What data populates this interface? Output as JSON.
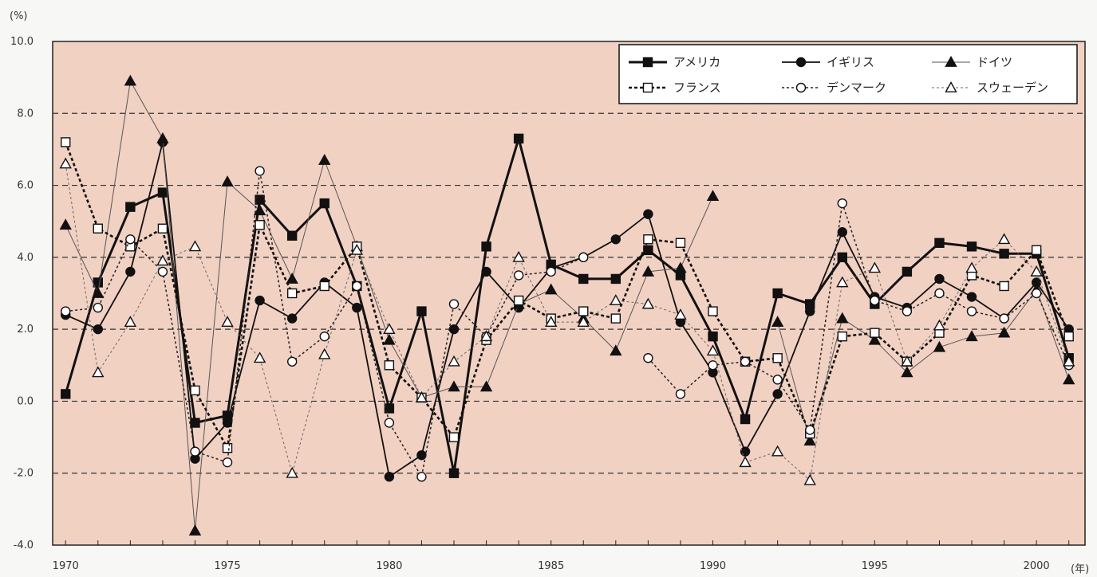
{
  "chart_data": {
    "type": "line",
    "title": "",
    "y_unit_label": "(%)",
    "x_unit_label": "(年)",
    "ylim": [
      -4.0,
      10.0
    ],
    "y_ticks": [
      "10.0",
      "8.0",
      "6.0",
      "4.0",
      "2.0",
      "0.0",
      "-2.0",
      "-4.0"
    ],
    "x_ticks": [
      "1970",
      "1975",
      "1980",
      "1985",
      "1990",
      "1995",
      "2000"
    ],
    "grid": "horizontal dashed at 8.0, 6.0, 4.0, 2.0, 0.0, -2.0",
    "plot_background": "#f1d2c2",
    "legend_position": "top-right",
    "x": [
      1970,
      1971,
      1972,
      1973,
      1974,
      1975,
      1976,
      1977,
      1978,
      1979,
      1980,
      1981,
      1982,
      1983,
      1984,
      1985,
      1986,
      1987,
      1988,
      1989,
      1990,
      1991,
      1992,
      1993,
      1994,
      1995,
      1996,
      1997,
      1998,
      1999,
      2000,
      2001
    ],
    "series": [
      {
        "name": "アメリカ",
        "style": "bold-solid-filled-square",
        "values": [
          0.2,
          3.3,
          5.4,
          5.8,
          -0.6,
          -0.4,
          5.6,
          4.6,
          5.5,
          3.2,
          -0.2,
          2.5,
          -2.0,
          4.3,
          7.3,
          3.8,
          3.4,
          3.4,
          4.2,
          3.5,
          1.8,
          -0.5,
          3.0,
          2.7,
          4.0,
          2.7,
          3.6,
          4.4,
          4.3,
          4.1,
          4.1,
          1.2
        ]
      },
      {
        "name": "イギリス",
        "style": "solid-filled-circle",
        "values": [
          2.4,
          2.0,
          3.6,
          7.2,
          -1.6,
          -0.6,
          2.8,
          2.3,
          3.3,
          2.6,
          -2.1,
          -1.5,
          2.0,
          3.6,
          2.6,
          3.7,
          4.0,
          4.5,
          5.2,
          2.2,
          0.8,
          -1.4,
          0.2,
          2.5,
          4.7,
          2.9,
          2.6,
          3.4,
          2.9,
          2.3,
          3.3,
          2.0
        ]
      },
      {
        "name": "ドイツ",
        "style": "thin-solid-filled-triangle",
        "values": [
          4.9,
          3.0,
          8.9,
          7.3,
          -3.6,
          6.1,
          5.3,
          3.4,
          6.7,
          4.3,
          1.7,
          0.1,
          0.4,
          0.4,
          2.7,
          3.1,
          2.3,
          1.4,
          3.6,
          3.7,
          5.7,
          null,
          2.2,
          -1.1,
          2.3,
          1.7,
          0.8,
          1.5,
          1.8,
          1.9,
          3.1,
          0.6
        ]
      },
      {
        "name": "フランス",
        "style": "bold-dotted-open-square",
        "values": [
          7.2,
          4.8,
          4.3,
          4.8,
          0.3,
          -1.3,
          4.9,
          3.0,
          3.2,
          4.3,
          1.0,
          0.1,
          -1.0,
          1.7,
          2.8,
          2.3,
          2.5,
          2.3,
          4.5,
          4.4,
          2.5,
          1.1,
          1.2,
          -0.9,
          1.8,
          1.9,
          1.1,
          1.9,
          3.5,
          3.2,
          4.2,
          1.8
        ]
      },
      {
        "name": "デンマーク",
        "style": "dotted-open-circle",
        "values": [
          2.5,
          2.6,
          4.5,
          3.6,
          -1.4,
          -1.7,
          6.4,
          1.1,
          1.8,
          3.2,
          -0.6,
          -2.1,
          2.7,
          1.8,
          3.5,
          3.6,
          4.0,
          null,
          1.2,
          0.2,
          1.0,
          1.1,
          0.6,
          -0.8,
          5.5,
          2.8,
          2.5,
          3.0,
          2.5,
          2.3,
          3.0,
          1.0
        ]
      },
      {
        "name": "スウェーデン",
        "style": "thin-dotted-open-triangle",
        "values": [
          6.6,
          0.8,
          2.2,
          3.9,
          4.3,
          2.2,
          1.2,
          -2.0,
          1.3,
          4.2,
          2.0,
          0.1,
          1.1,
          1.8,
          4.0,
          2.2,
          2.2,
          2.8,
          2.7,
          2.4,
          1.4,
          -1.7,
          -1.4,
          -2.2,
          3.3,
          3.7,
          1.1,
          2.1,
          3.7,
          4.5,
          3.6,
          1.1
        ]
      }
    ]
  }
}
